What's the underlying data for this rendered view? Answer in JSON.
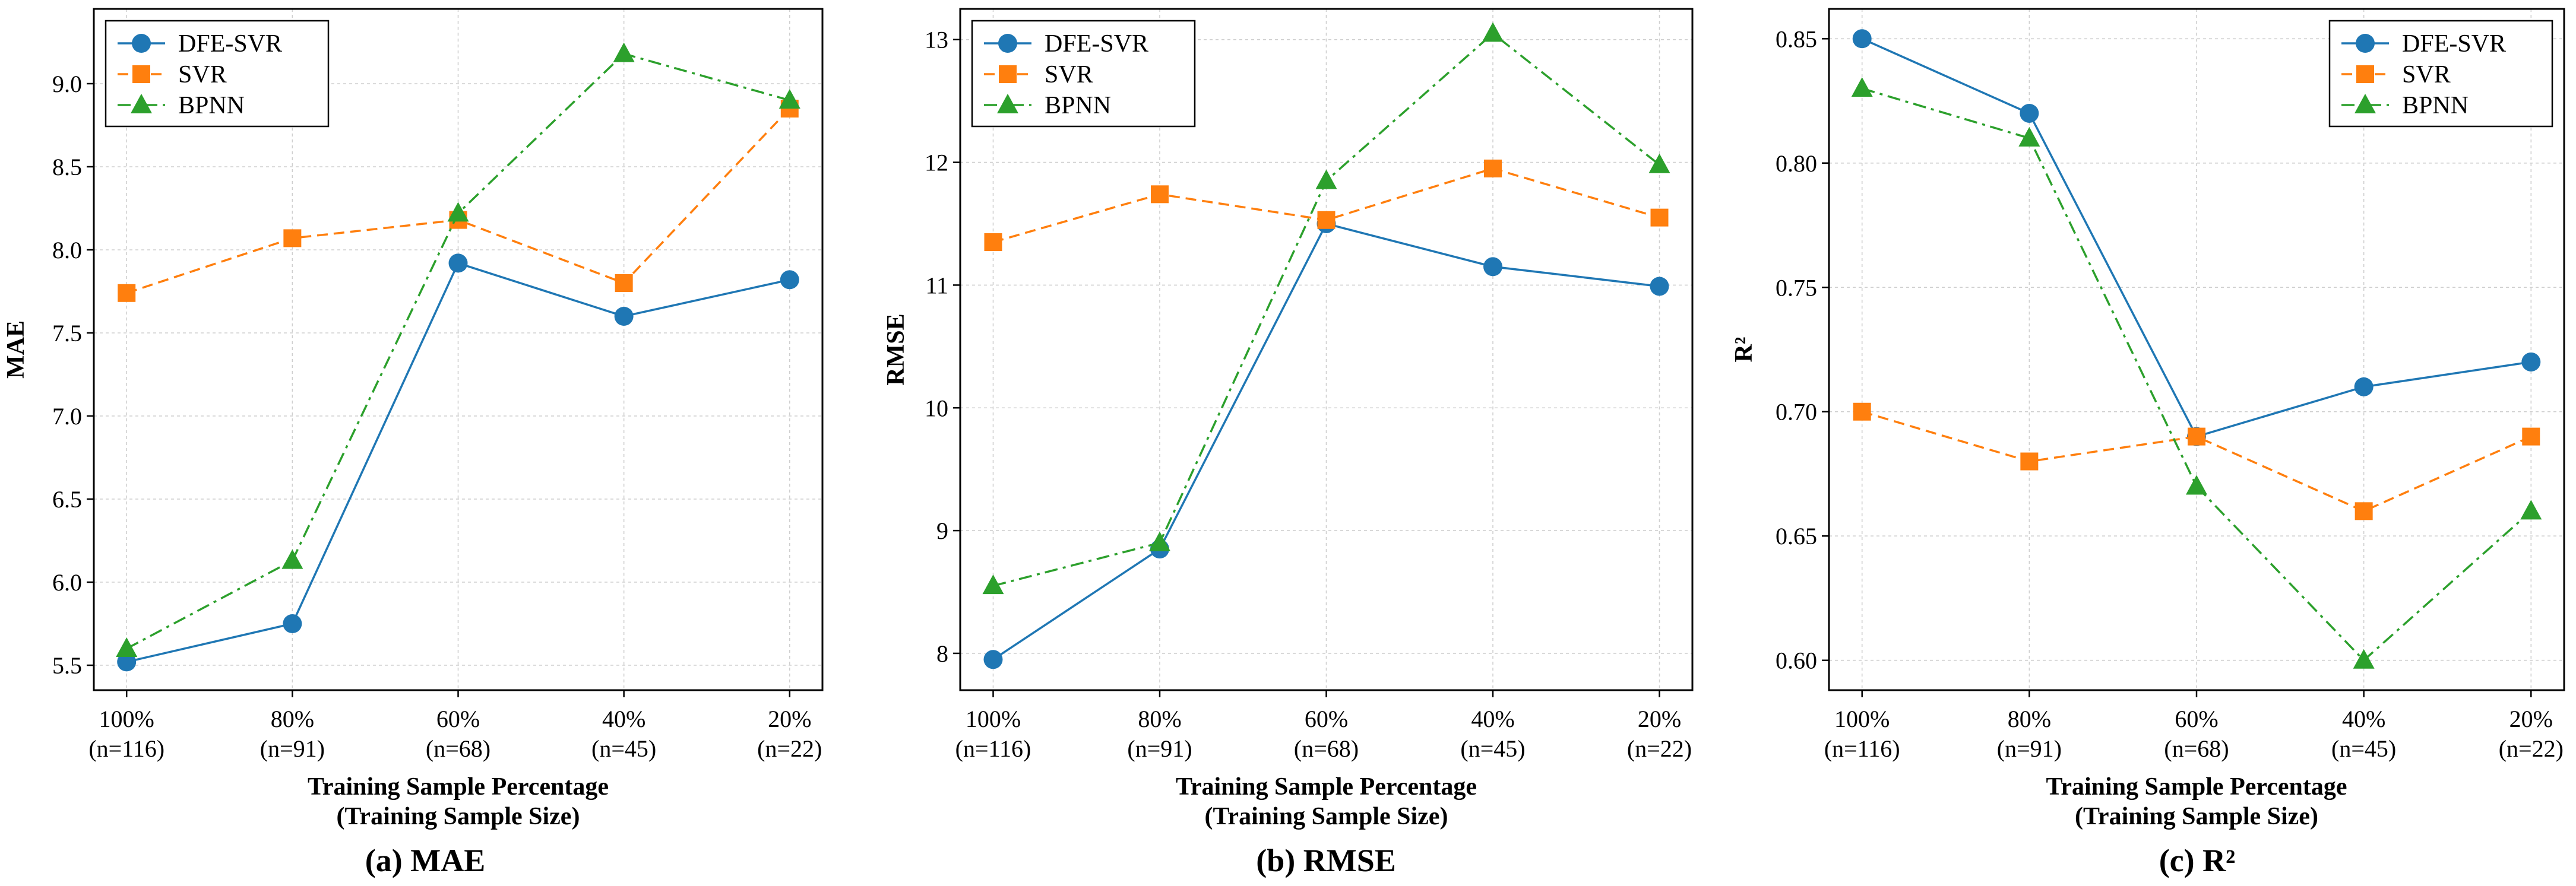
{
  "chart_data": [
    {
      "type": "line",
      "panel": "a",
      "caption": "(a) MAE",
      "ylabel": "MAE",
      "xlabel": [
        "Training Sample Percentage",
        "(Training Sample Size)"
      ],
      "categories": [
        [
          "100%",
          "(n=116)"
        ],
        [
          "80%",
          "(n=91)"
        ],
        [
          "60%",
          "(n=68)"
        ],
        [
          "40%",
          "(n=45)"
        ],
        [
          "20%",
          "(n=22)"
        ]
      ],
      "ylim": [
        5.35,
        9.45
      ],
      "yticks": [
        5.5,
        6.0,
        6.5,
        7.0,
        7.5,
        8.0,
        8.5,
        9.0
      ],
      "ytick_labels": [
        "5.5",
        "6.0",
        "6.5",
        "7.0",
        "7.5",
        "8.0",
        "8.5",
        "9.0"
      ],
      "legend_position": "top-left",
      "grid": true,
      "series": [
        {
          "name": "DFE-SVR",
          "values": [
            5.52,
            5.75,
            7.92,
            7.6,
            7.82
          ],
          "color": "#1f77b4",
          "marker": "circle",
          "linestyle": "solid"
        },
        {
          "name": "SVR",
          "values": [
            7.74,
            8.07,
            8.18,
            7.8,
            8.85
          ],
          "color": "#ff7f0e",
          "marker": "square",
          "linestyle": "dashed"
        },
        {
          "name": "BPNN",
          "values": [
            5.6,
            6.13,
            8.22,
            9.18,
            8.9
          ],
          "color": "#2ca02c",
          "marker": "triangle",
          "linestyle": "dashdot"
        }
      ]
    },
    {
      "type": "line",
      "panel": "b",
      "caption": "(b) RMSE",
      "ylabel": "RMSE",
      "xlabel": [
        "Training Sample Percentage",
        "(Training Sample Size)"
      ],
      "categories": [
        [
          "100%",
          "(n=116)"
        ],
        [
          "80%",
          "(n=91)"
        ],
        [
          "60%",
          "(n=68)"
        ],
        [
          "40%",
          "(n=45)"
        ],
        [
          "20%",
          "(n=22)"
        ]
      ],
      "ylim": [
        7.7,
        13.25
      ],
      "yticks": [
        8,
        9,
        10,
        11,
        12,
        13
      ],
      "ytick_labels": [
        "8",
        "9",
        "10",
        "11",
        "12",
        "13"
      ],
      "legend_position": "top-left",
      "grid": true,
      "series": [
        {
          "name": "DFE-SVR",
          "values": [
            7.95,
            8.85,
            11.5,
            11.15,
            10.99
          ],
          "color": "#1f77b4",
          "marker": "circle",
          "linestyle": "solid"
        },
        {
          "name": "SVR",
          "values": [
            11.35,
            11.74,
            11.53,
            11.95,
            11.55
          ],
          "color": "#ff7f0e",
          "marker": "square",
          "linestyle": "dashed"
        },
        {
          "name": "BPNN",
          "values": [
            8.55,
            8.9,
            11.85,
            13.05,
            11.98
          ],
          "color": "#2ca02c",
          "marker": "triangle",
          "linestyle": "dashdot"
        }
      ]
    },
    {
      "type": "line",
      "panel": "c",
      "caption": "(c) R²",
      "ylabel": "R²",
      "xlabel": [
        "Training Sample Percentage",
        "(Training Sample Size)"
      ],
      "categories": [
        [
          "100%",
          "(n=116)"
        ],
        [
          "80%",
          "(n=91)"
        ],
        [
          "60%",
          "(n=68)"
        ],
        [
          "40%",
          "(n=45)"
        ],
        [
          "20%",
          "(n=22)"
        ]
      ],
      "ylim": [
        0.588,
        0.862
      ],
      "yticks": [
        0.6,
        0.65,
        0.7,
        0.75,
        0.8,
        0.85
      ],
      "ytick_labels": [
        "0.60",
        "0.65",
        "0.70",
        "0.75",
        "0.80",
        "0.85"
      ],
      "legend_position": "top-right",
      "grid": true,
      "series": [
        {
          "name": "DFE-SVR",
          "values": [
            0.85,
            0.82,
            0.69,
            0.71,
            0.72
          ],
          "color": "#1f77b4",
          "marker": "circle",
          "linestyle": "solid"
        },
        {
          "name": "SVR",
          "values": [
            0.7,
            0.68,
            0.69,
            0.66,
            0.69
          ],
          "color": "#ff7f0e",
          "marker": "square",
          "linestyle": "dashed"
        },
        {
          "name": "BPNN",
          "values": [
            0.83,
            0.81,
            0.67,
            0.6,
            0.66
          ],
          "color": "#2ca02c",
          "marker": "triangle",
          "linestyle": "dashdot"
        }
      ]
    }
  ]
}
